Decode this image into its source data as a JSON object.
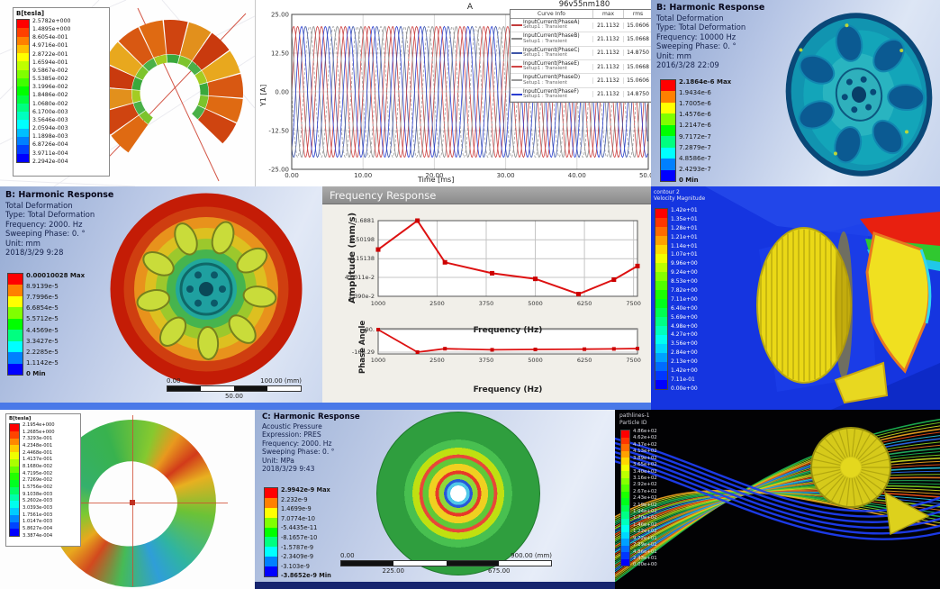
{
  "collage": {
    "panel_maxwell_stator": {
      "legend_title": "B[tesla]",
      "legend_values": [
        "2.5782e+000",
        "1.4895e+000",
        "8.6054e-001",
        "4.9716e-001",
        "2.8722e-001",
        "1.6594e-001",
        "9.5867e-002",
        "5.5385e-002",
        "3.1996e-002",
        "1.8486e-002",
        "1.0680e-002",
        "6.1700e-003",
        "3.5646e-003",
        "2.0594e-003",
        "1.1898e-003",
        "6.8726e-004",
        "3.9711e-004",
        "2.2942e-004"
      ]
    },
    "panel_currents": {
      "plot_title": "A",
      "window_label": "96v55nm180",
      "ylabel": "Y1 [A]",
      "xlabel": "Time [ms]",
      "y_ticks": [
        "25.00",
        "12.50",
        "0.00",
        "-12.50",
        "-25.00"
      ],
      "x_ticks": [
        "0.00",
        "10.00",
        "20.00",
        "30.00",
        "40.00",
        "50.00"
      ],
      "table": {
        "headers": [
          "Curve Info",
          "max",
          "rms"
        ],
        "rows": [
          {
            "name": "InputCurrent(PhaseA)",
            "setup": "Setup1 : Transient",
            "max": "21.1132",
            "rms": "15.0606",
            "color": "#c23b3b",
            "dash": "none"
          },
          {
            "name": "InputCurrent(PhaseB)",
            "setup": "Setup1 : Transient",
            "max": "21.1132",
            "rms": "15.0668",
            "color": "#8a8a8a",
            "dash": "none"
          },
          {
            "name": "InputCurrent(PhaseC)",
            "setup": "Setup1 : Transient",
            "max": "21.1132",
            "rms": "14.8750",
            "color": "#3d55a8",
            "dash": "none"
          },
          {
            "name": "InputCurrent(PhaseE)",
            "setup": "Setup1 : Transient",
            "max": "21.1132",
            "rms": "15.0668",
            "color": "#d04545",
            "dash": "none"
          },
          {
            "name": "InputCurrent(PhaseD)",
            "setup": "Setup1 : Transient",
            "max": "21.1132",
            "rms": "15.0606",
            "color": "#9a9a9a",
            "dash": "dashed"
          },
          {
            "name": "InputCurrent(PhaseF)",
            "setup": "Setup1 : Transient",
            "max": "21.1132",
            "rms": "14.8750",
            "color": "#2b3fd0",
            "dash": "none"
          }
        ]
      }
    },
    "panel_harmonic_top": {
      "title": "B: Harmonic Response",
      "lines": [
        "Total Deformation",
        "Type: Total Deformation",
        "Frequency: 10000 Hz",
        "Sweeping Phase: 0. °",
        "Unit: mm",
        "2016/3/28 22:09"
      ],
      "legend_values": [
        "2.1864e-6 Max",
        "1.9434e-6",
        "1.7005e-6",
        "1.4576e-6",
        "1.2147e-6",
        "9.7172e-7",
        "7.2879e-7",
        "4.8586e-7",
        "2.4293e-7",
        "0 Min"
      ]
    },
    "panel_harmonic_left": {
      "title": "B: Harmonic Response",
      "lines": [
        "Total Deformation",
        "Type: Total Deformation",
        "Frequency: 2000. Hz",
        "Sweeping Phase: 0. °",
        "Unit: mm",
        "2018/3/29 9:28"
      ],
      "legend_values": [
        "0.00010028 Max",
        "8.9139e-5",
        "7.7996e-5",
        "6.6854e-5",
        "5.5712e-5",
        "4.4569e-5",
        "3.3427e-5",
        "2.2285e-5",
        "1.1142e-5",
        "0 Min"
      ],
      "scale_bar": {
        "left": "0.00",
        "right": "100.00 (mm)",
        "mid": "50.00"
      }
    },
    "panel_freq_response": {
      "window_title": "Frequency Response",
      "amp_ylabel": "Amplitude (mm/s)",
      "phase_ylabel": "Phase Angle",
      "xlabel": "Frequency (Hz)",
      "amp_yticks": [
        "1.6881",
        "0.50198",
        "0.15138",
        "4.6011e-2",
        "1.390e-2"
      ],
      "phase_yticks": [
        "90.",
        "-160.29"
      ],
      "x_ticks": [
        "1000",
        "2500",
        "3750",
        "5000",
        "6250",
        "7500"
      ]
    },
    "panel_cfd_velocity": {
      "legend_line1": "contour 2",
      "legend_line2": "Velocity Magnitude",
      "legend_values": [
        "1.42e+01",
        "1.35e+01",
        "1.28e+01",
        "1.21e+01",
        "1.14e+01",
        "1.07e+01",
        "9.96e+00",
        "9.24e+00",
        "8.53e+00",
        "7.82e+00",
        "7.11e+00",
        "6.40e+00",
        "5.69e+00",
        "4.98e+00",
        "4.27e+00",
        "3.56e+00",
        "2.84e+00",
        "2.13e+00",
        "1.42e+00",
        "7.11e-01",
        "0.00e+00"
      ]
    },
    "panel_maxwell_rotor": {
      "legend_title": "B[tesla]",
      "legend_values": [
        "2.1954e+000",
        "1.2685e+000",
        "7.3293e-001",
        "4.2348e-001",
        "2.4468e-001",
        "1.4137e-001",
        "8.1680e-002",
        "4.7195e-002",
        "2.7269e-002",
        "1.5756e-002",
        "9.1038e-003",
        "5.2602e-003",
        "3.0393e-003",
        "1.7561e-003",
        "1.0147e-003",
        "5.8627e-004",
        "3.3874e-004"
      ]
    },
    "panel_acoustic": {
      "title": "C: Harmonic Response",
      "lines": [
        "Acoustic Pressure",
        "Expression: PRES",
        "Frequency: 2000. Hz",
        "Sweeping Phase: 0. °",
        "Unit: MPa",
        "2018/3/29 9:43"
      ],
      "legend_values": [
        "2.9942e-9 Max",
        "2.232e-9",
        "1.4699e-9",
        "7.0774e-10",
        "-5.4435e-11",
        "-8.1657e-10",
        "-1.5787e-9",
        "-2.3409e-9",
        "-3.103e-9",
        "-3.8652e-9 Min"
      ],
      "scale_bar": {
        "left": "0.00",
        "right": "900.00 (mm)",
        "mid_left": "225.00",
        "mid_right": "675.00"
      }
    },
    "panel_pathlines": {
      "legend_line1": "pathlines-1",
      "legend_line2": "Particle ID",
      "legend_values": [
        "4.86e+02",
        "4.62e+02",
        "4.37e+02",
        "4.13e+02",
        "3.89e+02",
        "3.65e+02",
        "3.40e+02",
        "3.16e+02",
        "2.92e+02",
        "2.67e+02",
        "2.43e+02",
        "2.19e+02",
        "1.94e+02",
        "1.70e+02",
        "1.46e+02",
        "1.22e+02",
        "9.72e+01",
        "7.29e+01",
        "4.86e+01",
        "2.43e+01",
        "0.00e+00"
      ]
    }
  },
  "chart_data": [
    {
      "type": "line",
      "title": "96v55nm180",
      "plot_title": "A",
      "xlabel": "Time [ms]",
      "ylabel": "Y1 [A]",
      "xlim": [
        0,
        50
      ],
      "ylim": [
        -25,
        25
      ],
      "waveform": {
        "amplitude": 21.1132,
        "period_ms": 3.3333
      },
      "series": [
        {
          "name": "InputCurrent(PhaseA)",
          "phase_deg": 0,
          "color": "#c23b3b",
          "dash": "none",
          "max": 21.1132,
          "rms": 15.0606
        },
        {
          "name": "InputCurrent(PhaseB)",
          "phase_deg": 120,
          "color": "#8a8a8a",
          "dash": "none",
          "max": 21.1132,
          "rms": 15.0668
        },
        {
          "name": "InputCurrent(PhaseC)",
          "phase_deg": 240,
          "color": "#3d55a8",
          "dash": "none",
          "max": 21.1132,
          "rms": 14.875
        },
        {
          "name": "InputCurrent(PhaseE)",
          "phase_deg": 60,
          "color": "#d04545",
          "dash": "none",
          "max": 21.1132,
          "rms": 15.0668
        },
        {
          "name": "InputCurrent(PhaseD)",
          "phase_deg": 180,
          "color": "#9a9a9a",
          "dash": "dashed",
          "max": 21.1132,
          "rms": 15.0606
        },
        {
          "name": "InputCurrent(PhaseF)",
          "phase_deg": 300,
          "color": "#2b3fd0",
          "dash": "none",
          "max": 21.1132,
          "rms": 14.875
        }
      ]
    },
    {
      "type": "line",
      "title": "Frequency Response",
      "xlabel": "Frequency (Hz)",
      "ylabel": "Amplitude (mm/s)",
      "yscale": "log",
      "xlim": [
        1000,
        7600
      ],
      "ylim": [
        0.0139,
        1.6881
      ],
      "x": [
        1000,
        2000,
        2700,
        3900,
        5000,
        6100,
        7000,
        7600
      ],
      "y": [
        0.27,
        1.6881,
        0.12,
        0.06,
        0.042,
        0.016,
        0.04,
        0.095
      ],
      "line_color": "#dd1111"
    },
    {
      "type": "line",
      "title": "Phase Angle",
      "xlabel": "Frequency (Hz)",
      "ylabel": "Phase Angle",
      "xlim": [
        1000,
        7600
      ],
      "ylim": [
        -180,
        100
      ],
      "x": [
        1000,
        2000,
        2700,
        3900,
        5000,
        6250,
        7000,
        7600
      ],
      "y": [
        90,
        -160,
        -122,
        -134,
        -130,
        -127,
        -124,
        -120
      ],
      "line_color": "#dd1111"
    }
  ]
}
